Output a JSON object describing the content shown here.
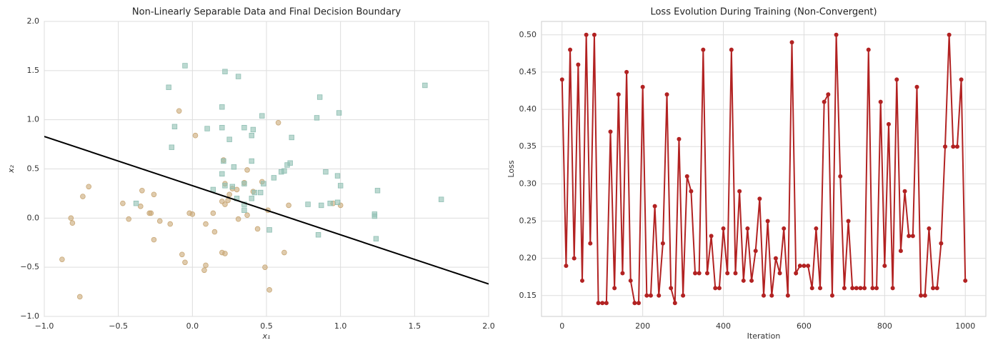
{
  "chart_data": [
    {
      "type": "scatter",
      "title": "Non-Linearly Separable Data and Final Decision Boundary",
      "xlabel": "x₁",
      "ylabel": "x₂",
      "xlim": [
        -1,
        2
      ],
      "ylim": [
        -1,
        2
      ],
      "grid": true,
      "xticks": [
        {
          "value": -1,
          "label": "−1.0"
        },
        {
          "value": -0.5,
          "label": "−0.5"
        },
        {
          "value": 0,
          "label": "0.0"
        },
        0.5,
        {
          "value": 1,
          "label": "1.0"
        },
        1.5,
        {
          "value": 2,
          "label": "2.0"
        }
      ],
      "yticks": [
        {
          "value": -1,
          "label": "−1.0"
        },
        {
          "value": -0.5,
          "label": "−0.5"
        },
        {
          "value": 0,
          "label": "0.0"
        },
        0.5,
        {
          "value": 1,
          "label": "1.0"
        },
        1.5,
        {
          "value": 2,
          "label": "2.0"
        }
      ],
      "series": [
        {
          "marker": "circle",
          "color": "#c9a877",
          "x": [
            -0.88,
            -0.76,
            -0.82,
            -0.81,
            -0.74,
            -0.7,
            -0.47,
            -0.43,
            -0.35,
            -0.34,
            -0.29,
            -0.28,
            -0.26,
            -0.26,
            -0.22,
            -0.15,
            -0.07,
            -0.05,
            -0.02,
            0.0,
            0.02,
            -0.09,
            0.08,
            0.09,
            0.09,
            0.14,
            0.15,
            0.2,
            0.22,
            0.22,
            0.25,
            0.27,
            0.3,
            0.31,
            0.2,
            0.22,
            0.37,
            0.35,
            0.37,
            0.41,
            0.44,
            0.47,
            0.49,
            0.52,
            0.58,
            0.62,
            0.65,
            0.95,
            1.0,
            0.24,
            0.21,
            0.51
          ],
          "values": [
            -0.42,
            -0.8,
            0.0,
            -0.05,
            0.22,
            0.32,
            0.15,
            -0.01,
            0.12,
            0.28,
            0.05,
            0.05,
            0.24,
            -0.22,
            -0.03,
            -0.06,
            -0.37,
            -0.45,
            0.05,
            0.04,
            0.84,
            1.09,
            -0.53,
            -0.48,
            -0.06,
            0.05,
            -0.14,
            -0.35,
            -0.36,
            0.14,
            0.24,
            0.3,
            0.29,
            -0.01,
            0.17,
            0.35,
            0.49,
            0.36,
            0.03,
            0.27,
            -0.11,
            0.37,
            -0.5,
            -0.73,
            0.97,
            -0.35,
            0.13,
            0.15,
            0.13,
            0.18,
            0.59,
            0.08
          ]
        },
        {
          "marker": "square",
          "color": "#8fbfb3",
          "x": [
            -0.05,
            0.22,
            0.31,
            -0.16,
            1.57,
            0.86,
            0.2,
            0.47,
            0.84,
            0.99,
            -0.12,
            0.1,
            0.2,
            0.35,
            0.41,
            0.25,
            0.4,
            0.67,
            -0.14,
            0.4,
            0.21,
            0.28,
            0.66,
            0.64,
            0.9,
            0.98,
            0.2,
            0.27,
            0.35,
            0.48,
            0.55,
            0.6,
            0.62,
            0.22,
            0.14,
            0.42,
            0.46,
            0.4,
            0.3,
            0.35,
            0.35,
            0.78,
            0.87,
            0.93,
            0.98,
            1.0,
            1.25,
            1.68,
            1.23,
            1.23,
            -0.38,
            0.52,
            0.85,
            1.24
          ],
          "values": [
            1.55,
            1.49,
            1.44,
            1.33,
            1.35,
            1.23,
            1.13,
            1.04,
            1.02,
            1.07,
            0.93,
            0.91,
            0.92,
            0.92,
            0.9,
            0.8,
            0.84,
            0.82,
            0.72,
            0.58,
            0.58,
            0.52,
            0.56,
            0.54,
            0.47,
            0.43,
            0.45,
            0.32,
            0.35,
            0.35,
            0.41,
            0.47,
            0.48,
            0.33,
            0.29,
            0.26,
            0.26,
            0.2,
            0.2,
            0.14,
            0.08,
            0.14,
            0.13,
            0.15,
            0.16,
            0.33,
            0.28,
            0.19,
            0.04,
            0.02,
            0.15,
            -0.12,
            -0.17,
            -0.21
          ]
        }
      ],
      "lines": [
        {
          "color": "#000000",
          "x": [
            -1,
            2
          ],
          "values": [
            0.83,
            -0.67
          ]
        }
      ]
    },
    {
      "type": "line",
      "title": "Loss Evolution During Training (Non-Convergent)",
      "xlabel": "Iteration",
      "ylabel": "Loss",
      "xlim": [
        -51,
        1051
      ],
      "ylim": [
        0.122,
        0.518
      ],
      "grid": true,
      "xticks": [
        0,
        200,
        400,
        600,
        800,
        1000
      ],
      "yticks": [
        0.15,
        {
          "value": 0.2,
          "label": "0.20"
        },
        0.25,
        {
          "value": 0.3,
          "label": "0.30"
        },
        0.35,
        {
          "value": 0.4,
          "label": "0.40"
        },
        0.45,
        {
          "value": 0.5,
          "label": "0.50"
        }
      ],
      "series": [
        {
          "color": "#b22222",
          "x": [
            0,
            10,
            20,
            30,
            40,
            50,
            60,
            70,
            80,
            90,
            100,
            110,
            120,
            130,
            140,
            150,
            160,
            170,
            180,
            190,
            200,
            210,
            220,
            230,
            240,
            250,
            260,
            270,
            280,
            290,
            300,
            310,
            320,
            330,
            340,
            350,
            360,
            370,
            380,
            390,
            400,
            410,
            420,
            430,
            440,
            450,
            460,
            470,
            480,
            490,
            500,
            510,
            520,
            530,
            540,
            550,
            560,
            570,
            580,
            590,
            600,
            610,
            620,
            630,
            640,
            650,
            660,
            670,
            680,
            690,
            700,
            710,
            720,
            730,
            740,
            750,
            760,
            770,
            780,
            790,
            800,
            810,
            820,
            830,
            840,
            850,
            860,
            870,
            880,
            890,
            900,
            910,
            920,
            930,
            940,
            950,
            960,
            970,
            980,
            990,
            1000
          ],
          "values": [
            0.44,
            0.19,
            0.48,
            0.2,
            0.46,
            0.17,
            0.5,
            0.22,
            0.5,
            0.14,
            0.14,
            0.14,
            0.37,
            0.16,
            0.42,
            0.18,
            0.45,
            0.17,
            0.14,
            0.14,
            0.43,
            0.15,
            0.15,
            0.27,
            0.15,
            0.22,
            0.42,
            0.16,
            0.14,
            0.36,
            0.15,
            0.31,
            0.29,
            0.18,
            0.18,
            0.48,
            0.18,
            0.23,
            0.16,
            0.16,
            0.24,
            0.18,
            0.48,
            0.18,
            0.29,
            0.17,
            0.24,
            0.17,
            0.21,
            0.28,
            0.15,
            0.25,
            0.15,
            0.2,
            0.18,
            0.24,
            0.15,
            0.49,
            0.18,
            0.19,
            0.19,
            0.19,
            0.16,
            0.24,
            0.16,
            0.41,
            0.42,
            0.15,
            0.5,
            0.31,
            0.16,
            0.25,
            0.16,
            0.16,
            0.16,
            0.16,
            0.48,
            0.16,
            0.16,
            0.41,
            0.19,
            0.38,
            0.16,
            0.44,
            0.21,
            0.29,
            0.23,
            0.23,
            0.43,
            0.15,
            0.15,
            0.24,
            0.16,
            0.16,
            0.22,
            0.35,
            0.5,
            0.35,
            0.35,
            0.44,
            0.17
          ]
        }
      ]
    }
  ]
}
